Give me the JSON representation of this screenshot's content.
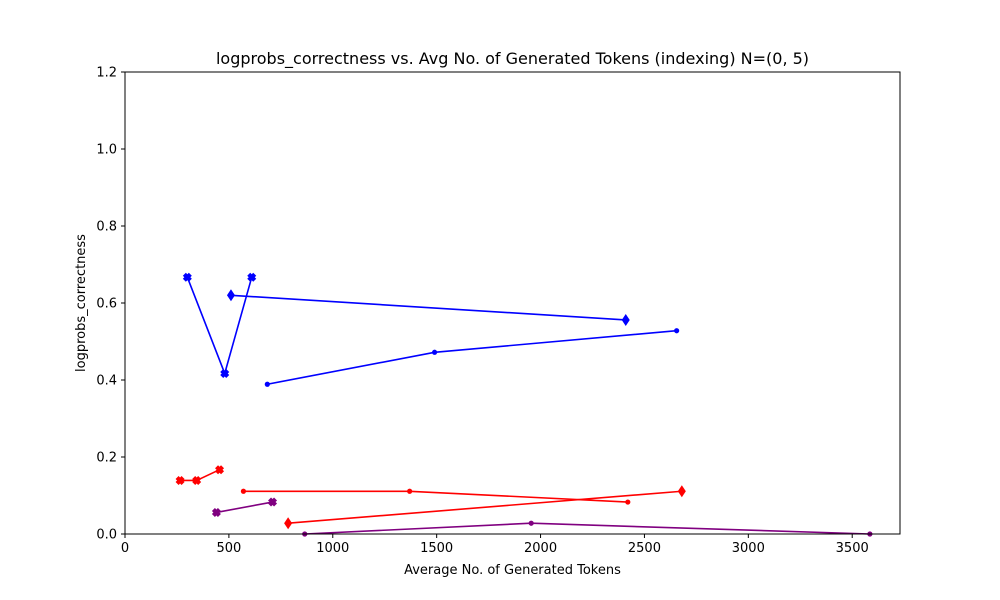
{
  "chart_data": {
    "type": "line",
    "title": "logprobs_correctness vs. Avg No. of Generated Tokens (indexing) N=(0, 5)",
    "xlabel": "Average No. of Generated Tokens",
    "ylabel": "logprobs_correctness",
    "xlim": [
      0,
      3730
    ],
    "ylim": [
      0,
      1.2
    ],
    "xticks": [
      0,
      500,
      1000,
      1500,
      2000,
      2500,
      3000,
      3500
    ],
    "yticks": [
      0.0,
      0.2,
      0.4,
      0.6,
      0.8,
      1.0,
      1.2
    ],
    "grid": false,
    "series": [
      {
        "color": "#0000ff",
        "marker": "x",
        "x": [
          300,
          480,
          610
        ],
        "y": [
          0.667,
          0.417,
          0.667
        ]
      },
      {
        "color": "#0000ff",
        "marker": "diamond",
        "x": [
          510,
          2410
        ],
        "y": [
          0.62,
          0.556
        ]
      },
      {
        "color": "#0000ff",
        "marker": "dot",
        "x": [
          685,
          1490,
          2655
        ],
        "y": [
          0.389,
          0.472,
          0.528
        ]
      },
      {
        "color": "#ff0000",
        "marker": "x",
        "x": [
          265,
          345,
          455
        ],
        "y": [
          0.139,
          0.139,
          0.167
        ]
      },
      {
        "color": "#ff0000",
        "marker": "dot",
        "x": [
          570,
          1370,
          2420
        ],
        "y": [
          0.111,
          0.111,
          0.083
        ]
      },
      {
        "color": "#ff0000",
        "marker": "diamond",
        "x": [
          785,
          2680
        ],
        "y": [
          0.028,
          0.111
        ]
      },
      {
        "color": "#800080",
        "marker": "x",
        "x": [
          440,
          710
        ],
        "y": [
          0.056,
          0.083
        ]
      },
      {
        "color": "#800080",
        "marker": "dot",
        "x": [
          865,
          1955,
          3585
        ],
        "y": [
          0.0,
          0.028,
          0.0
        ]
      }
    ]
  }
}
